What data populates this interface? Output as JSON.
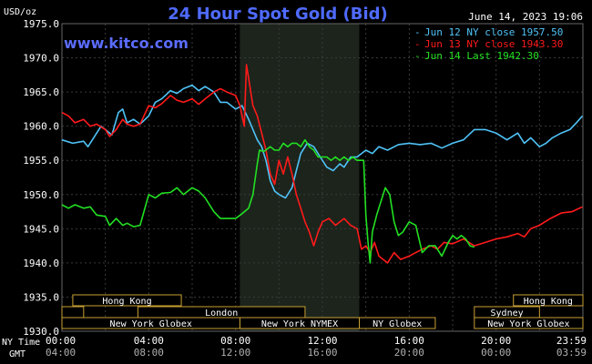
{
  "chart_data": {
    "type": "line",
    "title": "24 Hour Spot Gold (Bid)",
    "date_label": "June 14, 2023 19:06",
    "y_unit": "USD/oz",
    "watermark": "www.kitco.com",
    "ylim": [
      1930,
      1975
    ],
    "y_ticks": [
      "1930.0",
      "1935.0",
      "1940.0",
      "1945.0",
      "1950.0",
      "1955.0",
      "1960.0",
      "1965.0",
      "1970.0",
      "1975.0"
    ],
    "x_row1_label": "NY Time",
    "x_row2_label": "GMT",
    "x_ticks_ny": [
      "00:00",
      "04:00",
      "08:00",
      "12:00",
      "16:00",
      "20:00",
      "23:59"
    ],
    "x_ticks_gmt": [
      "04:00",
      "08:00",
      "12:00",
      "16:00",
      "20:00",
      "00:00",
      "03:59"
    ],
    "grid": true,
    "legend_position": "top-right",
    "colors": {
      "blue": "#4fc3f7",
      "red": "#ff1a1a",
      "green": "#22e022",
      "nymex_shade": "#1c241c",
      "grid": "#3a3a3a",
      "market_box": "#c8a032"
    },
    "series": [
      {
        "name": "Jun 12 NY close 1957.50",
        "color": "#4fc3f7",
        "points": [
          [
            0,
            1958
          ],
          [
            0.5,
            1957.5
          ],
          [
            1,
            1957.8
          ],
          [
            1.2,
            1957
          ],
          [
            1.5,
            1958.5
          ],
          [
            1.8,
            1960
          ],
          [
            2,
            1959.5
          ],
          [
            2.3,
            1958.7
          ],
          [
            2.6,
            1962
          ],
          [
            2.8,
            1962.5
          ],
          [
            3,
            1960.5
          ],
          [
            3.3,
            1961
          ],
          [
            3.6,
            1960.3
          ],
          [
            4,
            1961.5
          ],
          [
            4.3,
            1963.5
          ],
          [
            4.6,
            1964
          ],
          [
            5,
            1965.2
          ],
          [
            5.3,
            1964.8
          ],
          [
            5.6,
            1965.5
          ],
          [
            6,
            1966
          ],
          [
            6.3,
            1965.2
          ],
          [
            6.6,
            1965.8
          ],
          [
            7,
            1965
          ],
          [
            7.3,
            1963.5
          ],
          [
            7.6,
            1963.5
          ],
          [
            8,
            1962.5
          ],
          [
            8.3,
            1963
          ],
          [
            8.6,
            1961
          ],
          [
            9,
            1958
          ],
          [
            9.2,
            1957
          ],
          [
            9.4,
            1955
          ],
          [
            9.6,
            1952
          ],
          [
            9.8,
            1950.5
          ],
          [
            10,
            1950
          ],
          [
            10.3,
            1949.5
          ],
          [
            10.6,
            1951
          ],
          [
            10.8,
            1953.5
          ],
          [
            11,
            1956
          ],
          [
            11.3,
            1957.5
          ],
          [
            11.6,
            1957
          ],
          [
            11.9,
            1955.5
          ],
          [
            12.2,
            1954
          ],
          [
            12.5,
            1953.5
          ],
          [
            12.8,
            1954.5
          ],
          [
            13,
            1954
          ],
          [
            13.3,
            1955.5
          ],
          [
            13.6,
            1955.5
          ],
          [
            14,
            1956.5
          ],
          [
            14.3,
            1956
          ],
          [
            14.6,
            1957
          ],
          [
            15,
            1956.5
          ],
          [
            15.5,
            1957.3
          ],
          [
            16,
            1957.5
          ],
          [
            16.5,
            1957.3
          ],
          [
            17,
            1957.5
          ],
          [
            17.5,
            1956.8
          ],
          [
            18,
            1957.5
          ],
          [
            18.5,
            1958
          ],
          [
            19,
            1959.5
          ],
          [
            19.5,
            1959.5
          ],
          [
            20,
            1959
          ],
          [
            20.5,
            1958
          ],
          [
            21,
            1959
          ],
          [
            21.3,
            1957.5
          ],
          [
            21.6,
            1958.3
          ],
          [
            22,
            1957
          ],
          [
            22.3,
            1957.5
          ],
          [
            22.6,
            1958.3
          ],
          [
            23,
            1959
          ],
          [
            23.4,
            1959.5
          ],
          [
            23.7,
            1960.5
          ],
          [
            23.98,
            1961.5
          ]
        ]
      },
      {
        "name": "Jun 13 NY close 1943.30",
        "color": "#ff1a1a",
        "points": [
          [
            0,
            1962
          ],
          [
            0.3,
            1961.5
          ],
          [
            0.6,
            1960.5
          ],
          [
            1,
            1961
          ],
          [
            1.3,
            1960
          ],
          [
            1.6,
            1960.3
          ],
          [
            2,
            1959.5
          ],
          [
            2.2,
            1958.5
          ],
          [
            2.5,
            1959.5
          ],
          [
            2.8,
            1961
          ],
          [
            3,
            1960.3
          ],
          [
            3.3,
            1960
          ],
          [
            3.6,
            1960.3
          ],
          [
            4,
            1963
          ],
          [
            4.3,
            1962.7
          ],
          [
            4.6,
            1963.3
          ],
          [
            5,
            1964.5
          ],
          [
            5.3,
            1963.8
          ],
          [
            5.6,
            1963.5
          ],
          [
            6,
            1964
          ],
          [
            6.3,
            1963.2
          ],
          [
            6.6,
            1964
          ],
          [
            7,
            1965
          ],
          [
            7.3,
            1965.5
          ],
          [
            7.6,
            1965
          ],
          [
            8,
            1964.5
          ],
          [
            8.2,
            1963
          ],
          [
            8.4,
            1960
          ],
          [
            8.5,
            1969
          ],
          [
            8.6,
            1967
          ],
          [
            8.8,
            1963
          ],
          [
            9,
            1961.5
          ],
          [
            9.2,
            1959
          ],
          [
            9.4,
            1956.5
          ],
          [
            9.6,
            1953
          ],
          [
            9.8,
            1951.5
          ],
          [
            10,
            1955
          ],
          [
            10.2,
            1953
          ],
          [
            10.4,
            1955.5
          ],
          [
            10.6,
            1953
          ],
          [
            10.8,
            1950
          ],
          [
            11,
            1948
          ],
          [
            11.2,
            1946
          ],
          [
            11.4,
            1944.5
          ],
          [
            11.6,
            1942.5
          ],
          [
            11.8,
            1944.5
          ],
          [
            12,
            1946
          ],
          [
            12.3,
            1946.5
          ],
          [
            12.6,
            1945.5
          ],
          [
            13,
            1946.5
          ],
          [
            13.3,
            1945.5
          ],
          [
            13.6,
            1945
          ],
          [
            13.8,
            1942
          ],
          [
            14,
            1942.5
          ],
          [
            14.2,
            1941.5
          ],
          [
            14.4,
            1943
          ],
          [
            14.6,
            1941
          ],
          [
            14.8,
            1940.5
          ],
          [
            15,
            1940
          ],
          [
            15.3,
            1941.5
          ],
          [
            15.6,
            1940.5
          ],
          [
            16,
            1941
          ],
          [
            16.3,
            1941.5
          ],
          [
            16.6,
            1942
          ],
          [
            17,
            1942.5
          ],
          [
            17.3,
            1942
          ],
          [
            17.6,
            1943
          ],
          [
            18,
            1942.8
          ],
          [
            18.5,
            1943.5
          ],
          [
            19,
            1942.5
          ],
          [
            19.5,
            1943
          ],
          [
            20,
            1943.5
          ],
          [
            20.5,
            1943.8
          ],
          [
            21,
            1944.3
          ],
          [
            21.3,
            1943.8
          ],
          [
            21.6,
            1945
          ],
          [
            22,
            1945.5
          ],
          [
            22.5,
            1946.5
          ],
          [
            23,
            1947.3
          ],
          [
            23.5,
            1947.5
          ],
          [
            23.98,
            1948.2
          ]
        ]
      },
      {
        "name": "Jun 14 Last 1942.30",
        "color": "#22e022",
        "points": [
          [
            0,
            1948.5
          ],
          [
            0.3,
            1948
          ],
          [
            0.6,
            1948.5
          ],
          [
            1,
            1948
          ],
          [
            1.3,
            1948.2
          ],
          [
            1.6,
            1947
          ],
          [
            2,
            1946.8
          ],
          [
            2.2,
            1945.5
          ],
          [
            2.5,
            1946.5
          ],
          [
            2.8,
            1945.5
          ],
          [
            3,
            1945.8
          ],
          [
            3.3,
            1945.3
          ],
          [
            3.6,
            1945.5
          ],
          [
            4,
            1950
          ],
          [
            4.3,
            1949.5
          ],
          [
            4.6,
            1950.2
          ],
          [
            5,
            1950.3
          ],
          [
            5.3,
            1951
          ],
          [
            5.6,
            1950
          ],
          [
            6,
            1951
          ],
          [
            6.3,
            1950.5
          ],
          [
            6.6,
            1949.5
          ],
          [
            7,
            1947.5
          ],
          [
            7.3,
            1946.5
          ],
          [
            7.6,
            1946.5
          ],
          [
            8,
            1946.5
          ],
          [
            8.3,
            1947.2
          ],
          [
            8.6,
            1948
          ],
          [
            8.8,
            1950
          ],
          [
            9,
            1954.5
          ],
          [
            9.1,
            1956.5
          ],
          [
            9.3,
            1956.3
          ],
          [
            9.6,
            1957
          ],
          [
            9.8,
            1956.5
          ],
          [
            10,
            1956.5
          ],
          [
            10.2,
            1957.5
          ],
          [
            10.4,
            1957
          ],
          [
            10.6,
            1957.5
          ],
          [
            10.8,
            1957.5
          ],
          [
            11,
            1957
          ],
          [
            11.2,
            1958
          ],
          [
            11.4,
            1957
          ],
          [
            11.6,
            1956.5
          ],
          [
            11.8,
            1955.5
          ],
          [
            12,
            1955.5
          ],
          [
            12.2,
            1955.5
          ],
          [
            12.4,
            1955
          ],
          [
            12.6,
            1955.5
          ],
          [
            12.8,
            1955
          ],
          [
            13,
            1955.5
          ],
          [
            13.2,
            1955
          ],
          [
            13.4,
            1955.5
          ],
          [
            13.6,
            1955
          ],
          [
            13.9,
            1955
          ],
          [
            14,
            1947
          ],
          [
            14.1,
            1943
          ],
          [
            14.2,
            1940
          ],
          [
            14.3,
            1944.5
          ],
          [
            14.5,
            1947
          ],
          [
            14.7,
            1949
          ],
          [
            14.9,
            1951
          ],
          [
            15.1,
            1950
          ],
          [
            15.3,
            1946
          ],
          [
            15.5,
            1944
          ],
          [
            15.7,
            1944.5
          ],
          [
            16,
            1946
          ],
          [
            16.3,
            1945.5
          ],
          [
            16.6,
            1941.5
          ],
          [
            16.9,
            1942.5
          ],
          [
            17.2,
            1942.5
          ],
          [
            17.5,
            1941
          ],
          [
            17.8,
            1943
          ],
          [
            18,
            1944
          ],
          [
            18.2,
            1943.5
          ],
          [
            18.4,
            1944
          ],
          [
            18.6,
            1943.5
          ],
          [
            18.8,
            1942.5
          ],
          [
            19,
            1942.3
          ]
        ]
      }
    ],
    "markets": {
      "row1": [
        "Hong Kong",
        "Hong Kong"
      ],
      "row2": [
        "London",
        "Sydney"
      ],
      "row3": [
        "New York Globex",
        "New York NYMEX",
        "NY Globex",
        "New York Globex"
      ]
    }
  }
}
